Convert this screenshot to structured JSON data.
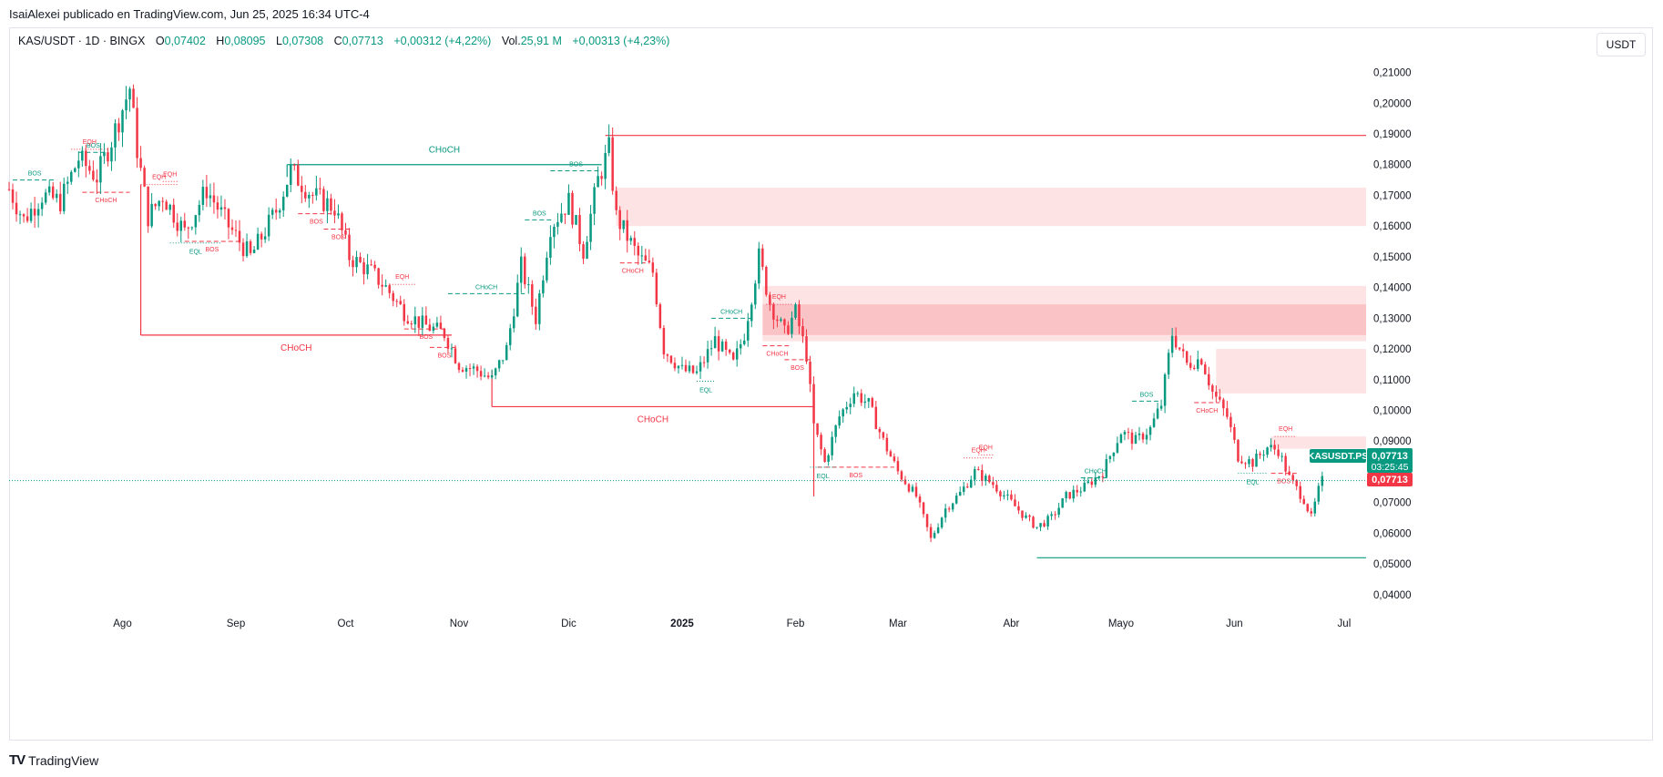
{
  "header": {
    "publisher_line": "IsaiAlexei publicado en TradingView.com, Jun 25, 2025 16:34 UTC-4"
  },
  "legend": {
    "symbol_line": "KAS/USDT · 1D · BINGX",
    "open_label": "O",
    "open": "0,07402",
    "high_label": "H",
    "high": "0,08095",
    "low_label": "L",
    "low": "0,07308",
    "close_label": "C",
    "close": "0,07713",
    "change": "+0,00312 (+4,22%)",
    "vol_label": "Vol.",
    "vol": "25,91 M",
    "vol_change": "+0,00313 (+4,23%)"
  },
  "currency_button": "USDT",
  "footer": {
    "brand": "TradingView",
    "logo": "TV"
  },
  "colors": {
    "up": "#089981",
    "down": "#f23645",
    "zone": "#fcd7d9",
    "zone_dark": "#f8b9bd"
  },
  "chart_data": {
    "type": "candlestick",
    "y_axis": {
      "min": 0.035,
      "max": 0.215,
      "ticks": [
        "0,21000",
        "0,20000",
        "0,19000",
        "0,18000",
        "0,17000",
        "0,16000",
        "0,15000",
        "0,14000",
        "0,13000",
        "0,12000",
        "0,11000",
        "0,10000",
        "0,09000",
        "0,08000",
        "0,07000",
        "0,06000",
        "0,05000",
        "0,04000"
      ],
      "tick_values": [
        0.21,
        0.2,
        0.19,
        0.18,
        0.17,
        0.16,
        0.15,
        0.14,
        0.13,
        0.12,
        0.11,
        0.1,
        0.09,
        0.08,
        0.07,
        0.06,
        0.05,
        0.04
      ]
    },
    "x_axis": {
      "start": "2024-07-01",
      "end": "2025-07-07",
      "labels": [
        {
          "text": "Ago",
          "date": "2024-08-01",
          "bold": false
        },
        {
          "text": "Sep",
          "date": "2024-09-01",
          "bold": false
        },
        {
          "text": "Oct",
          "date": "2024-10-01",
          "bold": false
        },
        {
          "text": "Nov",
          "date": "2024-11-01",
          "bold": false
        },
        {
          "text": "Dic",
          "date": "2024-12-01",
          "bold": false
        },
        {
          "text": "2025",
          "date": "2025-01-01",
          "bold": true
        },
        {
          "text": "Feb",
          "date": "2025-02-01",
          "bold": false
        },
        {
          "text": "Mar",
          "date": "2025-03-01",
          "bold": false
        },
        {
          "text": "Abr",
          "date": "2025-04-01",
          "bold": false
        },
        {
          "text": "Mayo",
          "date": "2025-05-01",
          "bold": false
        },
        {
          "text": "Jun",
          "date": "2025-06-01",
          "bold": false
        },
        {
          "text": "Jul",
          "date": "2025-07-01",
          "bold": false
        }
      ]
    },
    "price_path": [
      [
        "2024-07-01",
        0.172
      ],
      [
        "2024-07-05",
        0.162
      ],
      [
        "2024-07-10",
        0.17
      ],
      [
        "2024-07-15",
        0.168
      ],
      [
        "2024-07-20",
        0.182
      ],
      [
        "2024-07-25",
        0.176
      ],
      [
        "2024-07-29",
        0.188
      ],
      [
        "2024-08-03",
        0.205
      ],
      [
        "2024-08-05",
        0.185
      ],
      [
        "2024-08-08",
        0.163
      ],
      [
        "2024-08-12",
        0.17
      ],
      [
        "2024-08-18",
        0.158
      ],
      [
        "2024-08-24",
        0.172
      ],
      [
        "2024-08-30",
        0.16
      ],
      [
        "2024-09-05",
        0.15
      ],
      [
        "2024-09-12",
        0.165
      ],
      [
        "2024-09-16",
        0.178
      ],
      [
        "2024-09-22",
        0.17
      ],
      [
        "2024-09-28",
        0.166
      ],
      [
        "2024-10-02",
        0.15
      ],
      [
        "2024-10-08",
        0.145
      ],
      [
        "2024-10-12",
        0.14
      ],
      [
        "2024-10-17",
        0.132
      ],
      [
        "2024-10-22",
        0.128
      ],
      [
        "2024-10-28",
        0.125
      ],
      [
        "2024-11-01",
        0.115
      ],
      [
        "2024-11-06",
        0.113
      ],
      [
        "2024-11-10",
        0.11
      ],
      [
        "2024-11-14",
        0.12
      ],
      [
        "2024-11-18",
        0.147
      ],
      [
        "2024-11-22",
        0.13
      ],
      [
        "2024-11-26",
        0.16
      ],
      [
        "2024-12-01",
        0.168
      ],
      [
        "2024-12-05",
        0.152
      ],
      [
        "2024-12-09",
        0.175
      ],
      [
        "2024-12-12",
        0.185
      ],
      [
        "2024-12-14",
        0.163
      ],
      [
        "2024-12-20",
        0.15
      ],
      [
        "2024-12-24",
        0.145
      ],
      [
        "2024-12-27",
        0.12
      ],
      [
        "2025-01-01",
        0.113
      ],
      [
        "2025-01-05",
        0.112
      ],
      [
        "2025-01-10",
        0.123
      ],
      [
        "2025-01-15",
        0.115
      ],
      [
        "2025-01-18",
        0.125
      ],
      [
        "2025-01-22",
        0.15
      ],
      [
        "2025-01-25",
        0.135
      ],
      [
        "2025-01-29",
        0.125
      ],
      [
        "2025-02-01",
        0.132
      ],
      [
        "2025-02-04",
        0.118
      ],
      [
        "2025-02-06",
        0.095
      ],
      [
        "2025-02-09",
        0.083
      ],
      [
        "2025-02-13",
        0.098
      ],
      [
        "2025-02-17",
        0.106
      ],
      [
        "2025-02-21",
        0.102
      ],
      [
        "2025-02-25",
        0.09
      ],
      [
        "2025-03-01",
        0.08
      ],
      [
        "2025-03-06",
        0.072
      ],
      [
        "2025-03-10",
        0.058
      ],
      [
        "2025-03-14",
        0.068
      ],
      [
        "2025-03-18",
        0.073
      ],
      [
        "2025-03-22",
        0.08
      ],
      [
        "2025-03-27",
        0.076
      ],
      [
        "2025-04-01",
        0.07
      ],
      [
        "2025-04-05",
        0.065
      ],
      [
        "2025-04-08",
        0.062
      ],
      [
        "2025-04-12",
        0.065
      ],
      [
        "2025-04-16",
        0.072
      ],
      [
        "2025-04-21",
        0.075
      ],
      [
        "2025-04-26",
        0.08
      ],
      [
        "2025-05-01",
        0.093
      ],
      [
        "2025-05-05",
        0.09
      ],
      [
        "2025-05-09",
        0.094
      ],
      [
        "2025-05-12",
        0.102
      ],
      [
        "2025-05-15",
        0.125
      ],
      [
        "2025-05-19",
        0.115
      ],
      [
        "2025-05-23",
        0.117
      ],
      [
        "2025-05-26",
        0.106
      ],
      [
        "2025-05-30",
        0.098
      ],
      [
        "2025-06-02",
        0.085
      ],
      [
        "2025-06-06",
        0.083
      ],
      [
        "2025-06-10",
        0.088
      ],
      [
        "2025-06-13",
        0.087
      ],
      [
        "2025-06-16",
        0.078
      ],
      [
        "2025-06-20",
        0.071
      ],
      [
        "2025-06-22",
        0.065
      ],
      [
        "2025-06-24",
        0.074
      ],
      [
        "2025-06-25",
        0.0771
      ]
    ],
    "zones": [
      {
        "start": "2024-12-14",
        "end": "2025-07-07",
        "top": 0.1725,
        "bottom": 0.16,
        "shade": "light"
      },
      {
        "start": "2025-01-23",
        "end": "2025-07-07",
        "top": 0.1405,
        "bottom": 0.1225,
        "shade": "light"
      },
      {
        "start": "2025-01-23",
        "end": "2025-07-07",
        "top": 0.1345,
        "bottom": 0.1245,
        "shade": "dark"
      },
      {
        "start": "2025-05-27",
        "end": "2025-07-07",
        "top": 0.12,
        "bottom": 0.1055,
        "shade": "light"
      },
      {
        "start": "2025-06-11",
        "end": "2025-07-07",
        "top": 0.0915,
        "bottom": 0.0875,
        "shade": "light"
      }
    ],
    "structure_levels": [
      {
        "label": "CHoCH",
        "start": "2024-09-15",
        "end": "2024-12-10",
        "price": 0.18,
        "color": "up",
        "style": "solid"
      },
      {
        "label": "CHoCH",
        "start": "2024-08-06",
        "end": "2024-10-30",
        "price": 0.1245,
        "color": "down",
        "style": "solid"
      },
      {
        "label": "CHoCH",
        "start": "2024-11-10",
        "end": "2025-02-06",
        "price": 0.1012,
        "color": "down",
        "style": "solid"
      },
      {
        "label": "",
        "start": "2024-12-11",
        "end": "2025-07-07",
        "price": 0.1895,
        "color": "down",
        "style": "solid"
      },
      {
        "label": "",
        "start": "2025-04-08",
        "end": "2025-07-07",
        "price": 0.052,
        "color": "up",
        "style": "solid"
      },
      {
        "label": "BOS",
        "start": "2024-07-02",
        "end": "2024-07-14",
        "price": 0.175,
        "color": "up",
        "style": "dash"
      },
      {
        "label": "BOS",
        "start": "2024-07-20",
        "end": "2024-07-28",
        "price": 0.184,
        "color": "up",
        "style": "dash"
      },
      {
        "label": "CHoCH",
        "start": "2024-07-21",
        "end": "2024-08-03",
        "price": 0.171,
        "color": "down",
        "style": "dash"
      },
      {
        "label": "BOS",
        "start": "2024-08-18",
        "end": "2024-09-02",
        "price": 0.155,
        "color": "down",
        "style": "dash"
      },
      {
        "label": "BOS",
        "start": "2024-09-18",
        "end": "2024-09-28",
        "price": 0.164,
        "color": "down",
        "style": "dash"
      },
      {
        "label": "BOS",
        "start": "2024-09-25",
        "end": "2024-10-03",
        "price": 0.159,
        "color": "down",
        "style": "dash"
      },
      {
        "label": "BOS",
        "start": "2024-10-17",
        "end": "2024-10-29",
        "price": 0.1265,
        "color": "down",
        "style": "dash"
      },
      {
        "label": "BOS",
        "start": "2024-10-24",
        "end": "2024-11-01",
        "price": 0.1205,
        "color": "down",
        "style": "dash"
      },
      {
        "label": "CHoCH",
        "start": "2024-10-29",
        "end": "2024-11-19",
        "price": 0.138,
        "color": "up",
        "style": "dash"
      },
      {
        "label": "BOS",
        "start": "2024-11-19",
        "end": "2024-11-27",
        "price": 0.162,
        "color": "up",
        "style": "dash"
      },
      {
        "label": "BOS",
        "start": "2024-11-26",
        "end": "2024-12-10",
        "price": 0.178,
        "color": "up",
        "style": "dash"
      },
      {
        "label": "CHoCH",
        "start": "2024-12-15",
        "end": "2024-12-22",
        "price": 0.148,
        "color": "down",
        "style": "dash"
      },
      {
        "label": "CHoCH",
        "start": "2025-01-09",
        "end": "2025-01-20",
        "price": 0.13,
        "color": "up",
        "style": "dash"
      },
      {
        "label": "CHoCH",
        "start": "2025-01-23",
        "end": "2025-01-31",
        "price": 0.121,
        "color": "down",
        "style": "dash"
      },
      {
        "label": "BOS",
        "start": "2025-01-29",
        "end": "2025-02-05",
        "price": 0.1165,
        "color": "down",
        "style": "dash"
      },
      {
        "label": "BOS",
        "start": "2025-02-07",
        "end": "2025-02-28",
        "price": 0.0815,
        "color": "down",
        "style": "dash"
      },
      {
        "label": "CHoCH",
        "start": "2025-04-20",
        "end": "2025-04-28",
        "price": 0.078,
        "color": "up",
        "style": "dash"
      },
      {
        "label": "BOS",
        "start": "2025-05-04",
        "end": "2025-05-12",
        "price": 0.103,
        "color": "up",
        "style": "dash"
      },
      {
        "label": "CHoCH",
        "start": "2025-05-21",
        "end": "2025-05-28",
        "price": 0.1025,
        "color": "down",
        "style": "dash"
      },
      {
        "label": "BOS",
        "start": "2025-06-11",
        "end": "2025-06-18",
        "price": 0.0795,
        "color": "down",
        "style": "dash"
      }
    ],
    "swing_labels": [
      {
        "label": "EQH",
        "date": "2024-07-18",
        "price": 0.185,
        "color": "down",
        "endDate": "2024-07-28"
      },
      {
        "label": "EQH",
        "date": "2024-08-06",
        "price": 0.1735,
        "color": "down",
        "endDate": "2024-08-16"
      },
      {
        "label": "EQH",
        "date": "2024-08-12",
        "price": 0.1745,
        "color": "down",
        "endDate": "2024-08-16"
      },
      {
        "label": "EQL",
        "date": "2024-08-14",
        "price": 0.1545,
        "color": "up",
        "endDate": "2024-08-28"
      },
      {
        "label": "EQH",
        "date": "2024-10-13",
        "price": 0.141,
        "color": "down",
        "endDate": "2024-10-20"
      },
      {
        "label": "EQL",
        "date": "2025-01-05",
        "price": 0.1095,
        "color": "up",
        "endDate": "2025-01-10"
      },
      {
        "label": "EQH",
        "date": "2025-01-24",
        "price": 0.1345,
        "color": "down",
        "endDate": "2025-01-31"
      },
      {
        "label": "EQL",
        "date": "2025-02-05",
        "price": 0.0815,
        "color": "up",
        "endDate": "2025-02-12"
      },
      {
        "label": "EQH",
        "date": "2025-03-19",
        "price": 0.0845,
        "color": "down",
        "endDate": "2025-03-27"
      },
      {
        "label": "EQH",
        "date": "2025-03-23",
        "price": 0.0855,
        "color": "down",
        "endDate": "2025-03-27"
      },
      {
        "label": "EQL",
        "date": "2025-06-02",
        "price": 0.0795,
        "color": "up",
        "endDate": "2025-06-10"
      },
      {
        "label": "EQH",
        "date": "2025-06-12",
        "price": 0.0915,
        "color": "down",
        "endDate": "2025-06-18"
      }
    ],
    "last_price": 0.07713,
    "price_labels": {
      "symbol_tag": "KASUSDT.PS",
      "tag_price": "0,07713",
      "countdown": "03:25:45",
      "last_price_label": "0,07713"
    }
  }
}
